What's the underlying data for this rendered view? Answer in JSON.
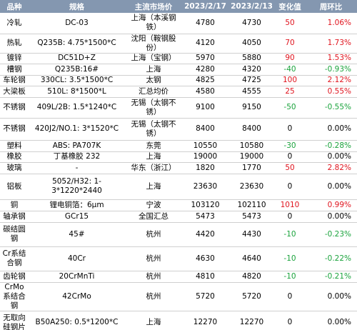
{
  "table": {
    "header": [
      "品种",
      "规格",
      "主流市场价",
      "2023/2/17",
      "2023/2/13",
      "变化值",
      "周环比"
    ],
    "rows": [
      [
        "冷轧",
        "DC-03",
        "上海（本溪钢铁）",
        "4780",
        "4730",
        "50",
        "1.06%"
      ],
      [
        "热轧",
        "Q235B: 4.75*1500*C",
        "沈阳（鞍钢股份）",
        "4120",
        "4050",
        "70",
        "1.73%"
      ],
      [
        "镀锌",
        "DC51D+Z",
        "上海（宝钢）",
        "5970",
        "5880",
        "90",
        "1.53%"
      ],
      [
        "槽钢",
        "Q235B:16#",
        "上海",
        "4280",
        "4320",
        "-40",
        "-0.93%"
      ],
      [
        "车轮钢",
        "330CL: 3.5*1500*C",
        "太钢",
        "4825",
        "4725",
        "100",
        "2.12%"
      ],
      [
        "大梁板",
        "510L: 8*1500*L",
        "汇总均价",
        "4580",
        "4555",
        "25",
        "0.55%"
      ],
      [
        "不锈钢",
        "409L/2B: 1.5*1240*C",
        "无锡（太钢不锈）",
        "9100",
        "9150",
        "-50",
        "-0.55%"
      ],
      [
        "不锈钢",
        "420J2/NO.1: 3*1520*C",
        "无锡（太钢不锈）",
        "8400",
        "8400",
        "0",
        "0.00%"
      ],
      [
        "塑料",
        "ABS: PA707K",
        "东莞",
        "10550",
        "10580",
        "-30",
        "-0.28%"
      ],
      [
        "橡胶",
        "丁基橡胶 232",
        "上海",
        "19000",
        "19000",
        "0",
        "0.00%"
      ],
      [
        "玻璃",
        "-",
        "华东（浙江）",
        "1820",
        "1770",
        "50",
        "2.82%"
      ],
      [
        "铝板",
        "5052/H32: 1-3*1220*2440",
        "上海",
        "23630",
        "23630",
        "0",
        "0.00%"
      ],
      [
        "铜",
        "锂电铜箔：6μm",
        "宁波",
        "103120",
        "102110",
        "1010",
        "0.99%"
      ],
      [
        "轴承钢",
        "GCr15",
        "全国汇总",
        "5473",
        "5473",
        "0",
        "0.00%"
      ],
      [
        "碳结圆钢",
        "45#",
        "杭州",
        "4420",
        "4430",
        "-10",
        "-0.23%"
      ],
      [
        "Cr系结合钢",
        "40Cr",
        "杭州",
        "4630",
        "4640",
        "-10",
        "-0.22%"
      ],
      [
        "齿轮钢",
        "20CrMnTi",
        "杭州",
        "4810",
        "4820",
        "-10",
        "-0.21%"
      ],
      [
        "CrMo系结合钢",
        "42CrMo",
        "杭州",
        "5720",
        "5720",
        "0",
        "0.00%"
      ],
      [
        "无取向硅钢片",
        "B50A250: 0.5*1200*C",
        "上海",
        "12270",
        "12270",
        "0",
        "0.00%"
      ]
    ]
  }
}
